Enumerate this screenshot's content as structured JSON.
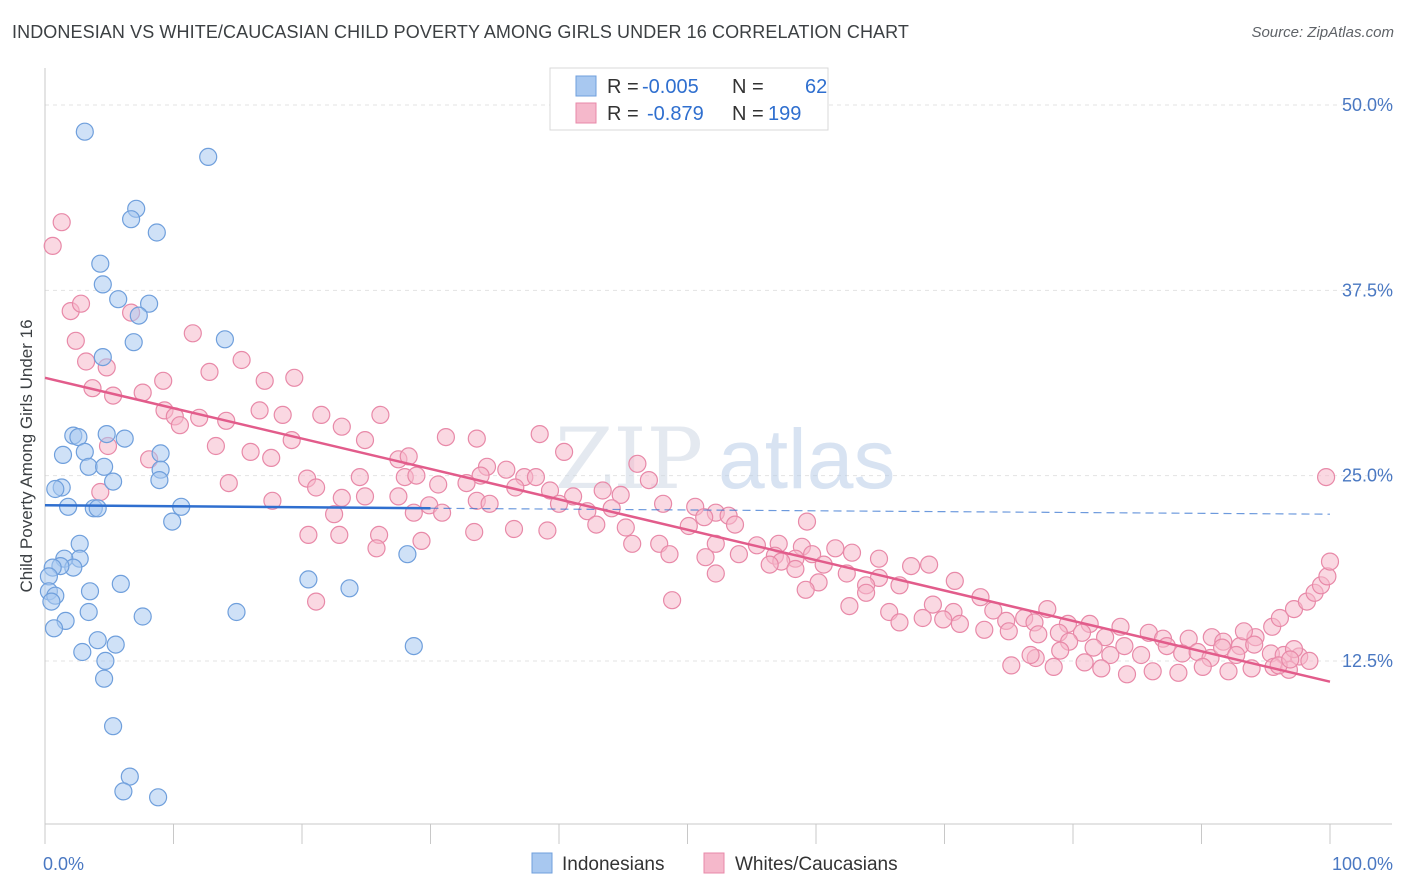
{
  "header": {
    "title": "INDONESIAN VS WHITE/CAUCASIAN CHILD POVERTY AMONG GIRLS UNDER 16 CORRELATION CHART",
    "source": "Source: ZipAtlas.com"
  },
  "watermark": {
    "part1": "ZIP",
    "part2": "atlas"
  },
  "legend": {
    "rows": [
      {
        "r_label": "R =",
        "r_value": "-0.005",
        "n_label": "N =",
        "n_value": "62",
        "color": "#a8c8f0",
        "stroke": "#6f9fdc"
      },
      {
        "r_label": "R =",
        "r_value": "-0.879",
        "n_label": "N =",
        "n_value": "199",
        "color": "#f5b8cb",
        "stroke": "#e889a8"
      }
    ]
  },
  "bottom_legend": {
    "items": [
      "Indonesians",
      "Whites/Caucasians"
    ]
  },
  "chart_data": {
    "type": "scatter",
    "title": "INDONESIAN VS WHITE/CAUCASIAN CHILD POVERTY AMONG GIRLS UNDER 16 CORRELATION CHART",
    "xlabel": "",
    "ylabel": "Child Poverty Among Girls Under 16",
    "x_tick_labels": [
      "0.0%",
      "100.0%"
    ],
    "y_tick_labels": [
      "12.5%",
      "25.0%",
      "37.5%",
      "50.0%"
    ],
    "y_ticks": [
      12.5,
      25.0,
      37.5,
      50.0
    ],
    "xlim": [
      0,
      100
    ],
    "ylim": [
      1.5,
      52.5
    ],
    "grid": true,
    "legend_placement": "top-center",
    "series": [
      {
        "name": "Indonesians",
        "color": "#a8c8f0",
        "stroke": "#6f9fdc",
        "trend": {
          "x": [
            0,
            30
          ],
          "y": [
            23.0,
            22.8
          ],
          "dashed_to": [
            100,
            22.4
          ],
          "color": "#2f6fcf"
        },
        "points": [
          [
            3.1,
            48.2
          ],
          [
            12.7,
            46.5
          ],
          [
            7.1,
            43.0
          ],
          [
            6.7,
            42.3
          ],
          [
            8.7,
            41.4
          ],
          [
            4.3,
            39.3
          ],
          [
            4.5,
            37.9
          ],
          [
            5.7,
            36.9
          ],
          [
            8.1,
            36.6
          ],
          [
            7.3,
            35.8
          ],
          [
            14.0,
            34.2
          ],
          [
            4.5,
            33.0
          ],
          [
            6.9,
            34.0
          ],
          [
            2.2,
            27.7
          ],
          [
            2.6,
            27.6
          ],
          [
            4.8,
            27.8
          ],
          [
            6.2,
            27.5
          ],
          [
            1.4,
            26.4
          ],
          [
            3.1,
            26.6
          ],
          [
            9.0,
            26.5
          ],
          [
            3.4,
            25.6
          ],
          [
            4.6,
            25.6
          ],
          [
            9.0,
            25.4
          ],
          [
            5.3,
            24.6
          ],
          [
            8.9,
            24.7
          ],
          [
            1.3,
            24.2
          ],
          [
            0.8,
            24.1
          ],
          [
            1.8,
            22.9
          ],
          [
            3.8,
            22.8
          ],
          [
            4.1,
            22.8
          ],
          [
            10.6,
            22.9
          ],
          [
            9.9,
            21.9
          ],
          [
            2.7,
            20.4
          ],
          [
            2.7,
            19.4
          ],
          [
            1.5,
            19.4
          ],
          [
            2.2,
            18.8
          ],
          [
            1.2,
            18.9
          ],
          [
            0.6,
            18.8
          ],
          [
            0.3,
            18.2
          ],
          [
            5.9,
            17.7
          ],
          [
            20.5,
            18.0
          ],
          [
            23.7,
            17.4
          ],
          [
            28.2,
            19.7
          ],
          [
            0.3,
            17.2
          ],
          [
            0.8,
            16.9
          ],
          [
            3.5,
            17.2
          ],
          [
            0.5,
            16.5
          ],
          [
            3.4,
            15.8
          ],
          [
            1.6,
            15.2
          ],
          [
            7.6,
            15.5
          ],
          [
            14.9,
            15.8
          ],
          [
            0.7,
            14.7
          ],
          [
            4.1,
            13.9
          ],
          [
            5.5,
            13.6
          ],
          [
            2.9,
            13.1
          ],
          [
            28.7,
            13.5
          ],
          [
            4.7,
            12.5
          ],
          [
            4.6,
            11.3
          ],
          [
            5.3,
            8.1
          ],
          [
            6.6,
            4.7
          ],
          [
            6.1,
            3.7
          ],
          [
            8.8,
            3.3
          ]
        ]
      },
      {
        "name": "Whites/Caucasians",
        "color": "#f5b8cb",
        "stroke": "#e889a8",
        "trend": {
          "x": [
            0,
            100
          ],
          "y": [
            31.6,
            11.1
          ],
          "color": "#e25c8b"
        },
        "points": [
          [
            0.6,
            40.5
          ],
          [
            1.3,
            42.1
          ],
          [
            2.0,
            36.1
          ],
          [
            2.8,
            36.6
          ],
          [
            6.7,
            36.0
          ],
          [
            2.4,
            34.1
          ],
          [
            11.5,
            34.6
          ],
          [
            15.3,
            32.8
          ],
          [
            3.2,
            32.7
          ],
          [
            4.8,
            32.3
          ],
          [
            12.8,
            32.0
          ],
          [
            9.2,
            31.4
          ],
          [
            17.1,
            31.4
          ],
          [
            19.4,
            31.6
          ],
          [
            31.2,
            27.6
          ],
          [
            3.7,
            30.9
          ],
          [
            5.3,
            30.4
          ],
          [
            7.6,
            30.6
          ],
          [
            9.3,
            29.4
          ],
          [
            10.1,
            29.0
          ],
          [
            12.0,
            28.9
          ],
          [
            16.7,
            29.4
          ],
          [
            18.5,
            29.1
          ],
          [
            21.5,
            29.1
          ],
          [
            26.1,
            29.1
          ],
          [
            10.5,
            28.4
          ],
          [
            14.1,
            28.7
          ],
          [
            23.1,
            28.3
          ],
          [
            24.9,
            27.4
          ],
          [
            19.2,
            27.4
          ],
          [
            33.6,
            27.5
          ],
          [
            38.5,
            27.8
          ],
          [
            13.3,
            27.0
          ],
          [
            4.9,
            27.0
          ],
          [
            8.1,
            26.1
          ],
          [
            16.0,
            26.6
          ],
          [
            17.6,
            26.2
          ],
          [
            27.5,
            26.1
          ],
          [
            28.3,
            26.3
          ],
          [
            40.4,
            26.6
          ],
          [
            46.1,
            25.8
          ],
          [
            34.4,
            25.6
          ],
          [
            35.9,
            25.4
          ],
          [
            24.5,
            24.9
          ],
          [
            20.4,
            24.8
          ],
          [
            21.1,
            24.2
          ],
          [
            28.0,
            24.9
          ],
          [
            28.9,
            25.0
          ],
          [
            33.9,
            25.0
          ],
          [
            37.3,
            24.9
          ],
          [
            38.2,
            24.9
          ],
          [
            47.0,
            24.7
          ],
          [
            30.6,
            24.4
          ],
          [
            32.8,
            24.5
          ],
          [
            36.6,
            24.2
          ],
          [
            39.3,
            24.0
          ],
          [
            41.1,
            23.6
          ],
          [
            43.4,
            24.0
          ],
          [
            44.8,
            23.7
          ],
          [
            4.3,
            23.9
          ],
          [
            14.3,
            24.5
          ],
          [
            17.7,
            23.3
          ],
          [
            27.5,
            23.6
          ],
          [
            24.9,
            23.6
          ],
          [
            23.1,
            23.5
          ],
          [
            33.6,
            23.3
          ],
          [
            34.6,
            23.1
          ],
          [
            29.9,
            23.0
          ],
          [
            40.0,
            23.1
          ],
          [
            44.1,
            22.8
          ],
          [
            42.2,
            22.6
          ],
          [
            48.1,
            23.1
          ],
          [
            50.6,
            22.9
          ],
          [
            52.2,
            22.5
          ],
          [
            22.5,
            22.4
          ],
          [
            28.7,
            22.5
          ],
          [
            30.9,
            22.5
          ],
          [
            51.3,
            22.2
          ],
          [
            53.2,
            22.3
          ],
          [
            42.9,
            21.7
          ],
          [
            45.2,
            21.5
          ],
          [
            50.1,
            21.6
          ],
          [
            53.7,
            21.7
          ],
          [
            59.3,
            21.9
          ],
          [
            39.1,
            21.3
          ],
          [
            36.5,
            21.4
          ],
          [
            33.4,
            21.2
          ],
          [
            26.0,
            21.0
          ],
          [
            29.3,
            20.6
          ],
          [
            20.5,
            21.0
          ],
          [
            22.9,
            21.0
          ],
          [
            45.7,
            20.4
          ],
          [
            47.8,
            20.4
          ],
          [
            52.2,
            20.4
          ],
          [
            55.4,
            20.3
          ],
          [
            57.1,
            20.4
          ],
          [
            58.9,
            20.2
          ],
          [
            61.5,
            20.1
          ],
          [
            25.8,
            20.1
          ],
          [
            48.6,
            19.7
          ],
          [
            51.4,
            19.5
          ],
          [
            54.0,
            19.7
          ],
          [
            56.8,
            19.6
          ],
          [
            58.4,
            19.4
          ],
          [
            59.7,
            19.7
          ],
          [
            62.8,
            19.8
          ],
          [
            64.9,
            19.4
          ],
          [
            57.3,
            19.2
          ],
          [
            56.4,
            19.0
          ],
          [
            60.6,
            19.0
          ],
          [
            58.4,
            18.7
          ],
          [
            67.4,
            18.9
          ],
          [
            68.8,
            19.0
          ],
          [
            52.2,
            18.4
          ],
          [
            62.4,
            18.4
          ],
          [
            64.9,
            18.1
          ],
          [
            63.9,
            17.6
          ],
          [
            66.5,
            17.6
          ],
          [
            60.2,
            17.8
          ],
          [
            70.8,
            17.9
          ],
          [
            59.2,
            17.3
          ],
          [
            63.9,
            17.1
          ],
          [
            72.8,
            16.8
          ],
          [
            48.8,
            16.6
          ],
          [
            21.1,
            16.5
          ],
          [
            69.1,
            16.3
          ],
          [
            70.7,
            15.8
          ],
          [
            73.8,
            15.9
          ],
          [
            78.0,
            16.0
          ],
          [
            62.6,
            16.2
          ],
          [
            65.7,
            15.8
          ],
          [
            68.3,
            15.4
          ],
          [
            66.5,
            15.1
          ],
          [
            69.9,
            15.3
          ],
          [
            71.2,
            15.0
          ],
          [
            74.8,
            15.2
          ],
          [
            76.2,
            15.4
          ],
          [
            77.0,
            15.1
          ],
          [
            79.6,
            15.0
          ],
          [
            81.3,
            15.0
          ],
          [
            83.7,
            14.8
          ],
          [
            73.1,
            14.6
          ],
          [
            75.0,
            14.5
          ],
          [
            77.3,
            14.3
          ],
          [
            78.9,
            14.4
          ],
          [
            80.7,
            14.4
          ],
          [
            82.5,
            14.1
          ],
          [
            85.9,
            14.4
          ],
          [
            87.0,
            14.0
          ],
          [
            89.0,
            14.0
          ],
          [
            90.8,
            14.1
          ],
          [
            91.7,
            13.8
          ],
          [
            93.0,
            13.5
          ],
          [
            94.2,
            14.1
          ],
          [
            93.3,
            14.5
          ],
          [
            95.5,
            14.8
          ],
          [
            96.1,
            15.4
          ],
          [
            97.2,
            16.0
          ],
          [
            98.2,
            16.5
          ],
          [
            98.8,
            17.1
          ],
          [
            99.3,
            17.6
          ],
          [
            99.8,
            18.2
          ],
          [
            100.0,
            19.2
          ],
          [
            99.7,
            24.9
          ],
          [
            79.7,
            13.8
          ],
          [
            81.6,
            13.4
          ],
          [
            82.9,
            12.9
          ],
          [
            84.0,
            13.5
          ],
          [
            85.3,
            12.9
          ],
          [
            87.3,
            13.5
          ],
          [
            88.5,
            13.0
          ],
          [
            89.7,
            13.1
          ],
          [
            90.7,
            12.7
          ],
          [
            91.6,
            13.4
          ],
          [
            92.7,
            12.9
          ],
          [
            94.1,
            13.6
          ],
          [
            95.4,
            13.0
          ],
          [
            96.4,
            12.9
          ],
          [
            97.6,
            12.8
          ],
          [
            79.0,
            13.2
          ],
          [
            77.1,
            12.7
          ],
          [
            75.2,
            12.2
          ],
          [
            76.7,
            12.9
          ],
          [
            78.5,
            12.1
          ],
          [
            80.9,
            12.4
          ],
          [
            82.2,
            12.0
          ],
          [
            84.2,
            11.6
          ],
          [
            86.2,
            11.8
          ],
          [
            88.2,
            11.7
          ],
          [
            90.1,
            12.1
          ],
          [
            92.1,
            11.8
          ],
          [
            93.9,
            12.0
          ],
          [
            95.6,
            12.1
          ],
          [
            96.8,
            11.9
          ],
          [
            98.4,
            12.5
          ],
          [
            97.2,
            13.3
          ],
          [
            96.0,
            12.2
          ],
          [
            96.9,
            12.6
          ]
        ]
      }
    ]
  }
}
